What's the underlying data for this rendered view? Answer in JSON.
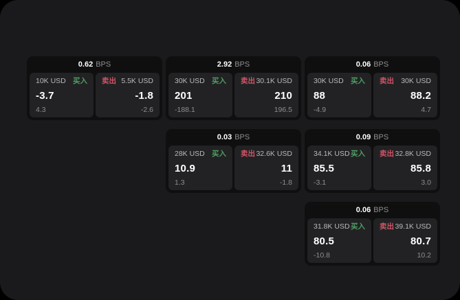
{
  "labels": {
    "bps_unit": "BPS",
    "buy": "买入",
    "sell": "卖出"
  },
  "colors": {
    "page_bg": "#1a1a1c",
    "card_bg": "#0f0f10",
    "panel_bg": "#222224",
    "buy_green": "#4e9e63",
    "sell_red": "#cf5466",
    "value_text": "#ffffff",
    "label_text": "#b9b9bb",
    "muted_text": "#8e8e90"
  },
  "cards": [
    {
      "row": 1,
      "col": 1,
      "bps": "0.62",
      "buy": {
        "amount": "10K USD",
        "price": "-3.7",
        "sub": "4.3"
      },
      "sell": {
        "amount": "5.5K USD",
        "price": "-1.8",
        "sub": "-2.6"
      }
    },
    {
      "row": 1,
      "col": 2,
      "bps": "2.92",
      "buy": {
        "amount": "30K USD",
        "price": "201",
        "sub": "-188.1"
      },
      "sell": {
        "amount": "30.1K USD",
        "price": "210",
        "sub": "196.5"
      }
    },
    {
      "row": 1,
      "col": 3,
      "bps": "0.06",
      "buy": {
        "amount": "30K USD",
        "price": "88",
        "sub": "-4.9"
      },
      "sell": {
        "amount": "30K USD",
        "price": "88.2",
        "sub": "4.7"
      }
    },
    {
      "row": 2,
      "col": 2,
      "bps": "0.03",
      "buy": {
        "amount": "28K USD",
        "price": "10.9",
        "sub": "1.3"
      },
      "sell": {
        "amount": "32.6K USD",
        "price": "11",
        "sub": "-1.8"
      }
    },
    {
      "row": 2,
      "col": 3,
      "bps": "0.09",
      "buy": {
        "amount": "34.1K USD",
        "price": "85.5",
        "sub": "-3.1"
      },
      "sell": {
        "amount": "32.8K USD",
        "price": "85.8",
        "sub": "3.0"
      }
    },
    {
      "row": 3,
      "col": 3,
      "bps": "0.06",
      "buy": {
        "amount": "31.8K USD",
        "price": "80.5",
        "sub": "-10.8"
      },
      "sell": {
        "amount": "39.1K USD",
        "price": "80.7",
        "sub": "10.2"
      }
    }
  ]
}
